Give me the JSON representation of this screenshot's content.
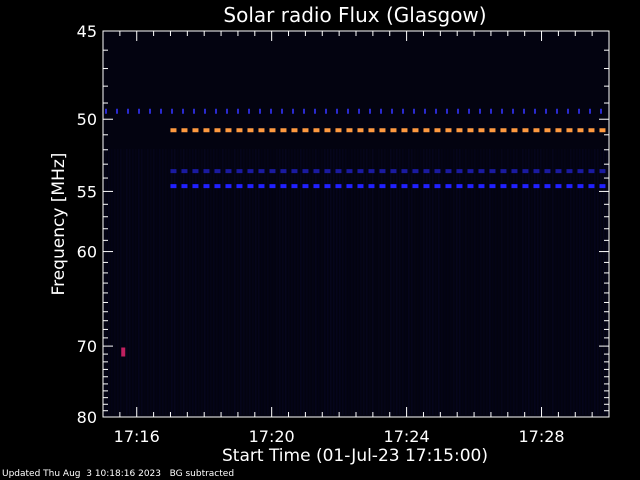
{
  "chart_data": {
    "type": "heatmap",
    "title": "Solar radio Flux (Glasgow)",
    "xlabel": "Start Time (01-Jul-23 17:15:00)",
    "ylabel": "Frequency [MHz]",
    "x_ticks": [
      "17:16",
      "17:20",
      "17:24",
      "17:28"
    ],
    "x_tick_minutes": [
      16,
      20,
      24,
      28
    ],
    "xlim_minutes": [
      15.0,
      30.0
    ],
    "y_ticks": [
      45,
      50,
      55,
      60,
      70,
      80
    ],
    "ylim": [
      45,
      80
    ],
    "y_scale": "reciprocal",
    "emission_lines": [
      {
        "frequency": 49.5,
        "color": "#2a2ad0",
        "style": "dotted"
      },
      {
        "frequency": 50.7,
        "color": "#ff9a40",
        "style": "dashed"
      },
      {
        "frequency": 53.5,
        "color": "#1a1aa0",
        "style": "dashed"
      },
      {
        "frequency": 54.6,
        "color": "#2020ff",
        "style": "dashed"
      }
    ],
    "hotspot": {
      "time_minute": 15.6,
      "frequency": 70.8,
      "color": "#c02060"
    }
  },
  "footer": {
    "updated": "Updated Thu Aug  3 10:18:16 2023",
    "note": "BG subtracted"
  }
}
